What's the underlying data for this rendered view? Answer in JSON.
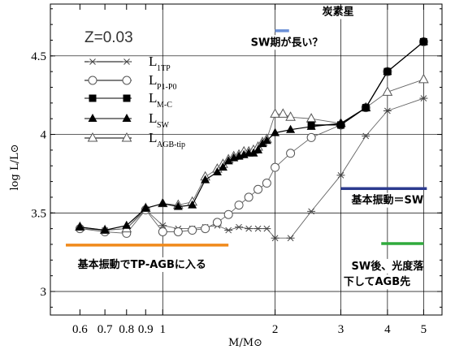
{
  "chart_data": {
    "type": "line",
    "xscale": "log",
    "xlim": [
      0.5,
      5.6
    ],
    "ylim": [
      2.85,
      4.83
    ],
    "xlabel": "M/M⊙",
    "ylabel": "log L/L⊙",
    "xticks": [
      {
        "v": 0.6,
        "label": "0.6"
      },
      {
        "v": 0.7,
        "label": "0.7"
      },
      {
        "v": 0.8,
        "label": "0.8"
      },
      {
        "v": 0.9,
        "label": "0.9"
      },
      {
        "v": 1,
        "label": "1"
      },
      {
        "v": 2,
        "label": "2"
      },
      {
        "v": 3,
        "label": "3"
      },
      {
        "v": 4,
        "label": "4"
      },
      {
        "v": 5,
        "label": "5"
      }
    ],
    "yticks": [
      {
        "v": 3,
        "label": "3"
      },
      {
        "v": 3.5,
        "label": "3.5"
      },
      {
        "v": 4,
        "label": "4"
      },
      {
        "v": 4.5,
        "label": "4.5"
      }
    ],
    "grid": "horizontal",
    "metallicity_label": "Z=0.03",
    "legend_position": "top-left",
    "series": [
      {
        "name": "L",
        "name_sub": "1TP",
        "marker": "star",
        "x": [
          0.6,
          0.7,
          0.8,
          0.9,
          1.0,
          1.1,
          1.2,
          1.3,
          1.4,
          1.5,
          1.6,
          1.7,
          1.8,
          1.9,
          2.0,
          2.2,
          2.5,
          3.0,
          3.5,
          4.0,
          5.0
        ],
        "y": [
          3.4,
          3.39,
          3.4,
          3.52,
          3.42,
          3.4,
          3.4,
          3.41,
          3.42,
          3.39,
          3.41,
          3.4,
          3.4,
          3.4,
          3.34,
          3.34,
          3.51,
          3.74,
          3.99,
          4.15,
          4.23
        ]
      },
      {
        "name": "L",
        "name_sub": "P1-P0",
        "marker": "circle-open",
        "x": [
          0.6,
          0.7,
          0.8,
          0.9,
          1.0,
          1.1,
          1.2,
          1.3,
          1.4,
          1.5,
          1.6,
          1.7,
          1.8,
          1.9,
          2.0,
          2.2,
          2.5,
          3.0,
          3.5,
          4.0,
          5.0
        ],
        "y": [
          3.4,
          3.38,
          3.37,
          3.52,
          3.38,
          3.38,
          3.39,
          3.4,
          3.44,
          3.49,
          3.55,
          3.6,
          3.65,
          3.69,
          3.79,
          3.88,
          3.98,
          4.06,
          4.17,
          4.4,
          4.59
        ]
      },
      {
        "name": "L",
        "name_sub": "M-C",
        "marker": "square-filled",
        "x": [
          2.5,
          3.0,
          3.5,
          4.0,
          5.0
        ],
        "y": [
          4.06,
          4.06,
          4.17,
          4.4,
          4.59
        ]
      },
      {
        "name": "L",
        "name_sub": "SW",
        "marker": "triangle-filled",
        "x": [
          0.6,
          0.7,
          0.8,
          0.9,
          1.0,
          1.1,
          1.2,
          1.3,
          1.4,
          1.45,
          1.5,
          1.55,
          1.6,
          1.65,
          1.7,
          1.75,
          1.8,
          1.85,
          1.9,
          2.0,
          2.2,
          2.5,
          3.0,
          3.5,
          4.0,
          5.0
        ],
        "y": [
          3.41,
          3.39,
          3.42,
          3.53,
          3.56,
          3.54,
          3.55,
          3.71,
          3.76,
          3.79,
          3.83,
          3.85,
          3.86,
          3.87,
          3.88,
          3.88,
          3.9,
          3.94,
          3.96,
          4.01,
          4.03,
          4.05,
          4.07,
          4.17,
          4.4,
          4.59
        ]
      },
      {
        "name": "L",
        "name_sub": "AGB-tip",
        "marker": "triangle-open",
        "x": [
          0.6,
          0.7,
          0.8,
          0.9,
          1.0,
          1.1,
          1.2,
          1.3,
          1.4,
          1.45,
          1.5,
          1.55,
          1.6,
          1.65,
          1.7,
          1.75,
          1.8,
          1.85,
          1.9,
          2.0,
          2.1,
          2.2,
          2.5,
          3.0,
          3.5,
          4.0,
          5.0
        ],
        "y": [
          3.41,
          3.39,
          3.4,
          3.53,
          3.56,
          3.55,
          3.57,
          3.73,
          3.78,
          3.81,
          3.84,
          3.86,
          3.87,
          3.89,
          3.89,
          3.9,
          3.92,
          3.95,
          3.97,
          4.13,
          4.13,
          4.11,
          4.1,
          4.07,
          4.17,
          4.27,
          4.35
        ]
      }
    ],
    "annotations": [
      {
        "text": "炭素星",
        "bar_color": "#d42b2b",
        "bar_x": [
          2.48,
          3.6
        ],
        "bar_y": 4.875,
        "text_x": 2.95,
        "text_y": 4.76
      },
      {
        "text": "SW期が長い？",
        "bar_color": "#6a8fd6",
        "bar_x": [
          2.0,
          2.18
        ],
        "bar_y": 4.66,
        "text_x": 2.15,
        "text_y": 4.565
      },
      {
        "text": "基本振動＝SW",
        "bar_color": "#2c3b8f",
        "bar_x": [
          3.0,
          5.1
        ],
        "bar_y": 3.655,
        "text_x": 4.0,
        "text_y": 3.56
      },
      {
        "text": "基本振動でTP-AGBに入る",
        "bar_color": "#f08a1c",
        "bar_x": [
          0.55,
          1.5
        ],
        "bar_y": 3.295,
        "text_x": 0.88,
        "text_y": 3.15
      },
      {
        "text": "SW後、光度落",
        "bar_color": "#2faa3c",
        "bar_x": [
          3.85,
          5.0
        ],
        "bar_y": 3.305,
        "text_x": 4.0,
        "text_y": 3.14
      },
      {
        "text": "下してAGB先",
        "bar_color": "",
        "bar_x": null,
        "bar_y": null,
        "text_x": 3.75,
        "text_y": 3.04
      }
    ]
  }
}
